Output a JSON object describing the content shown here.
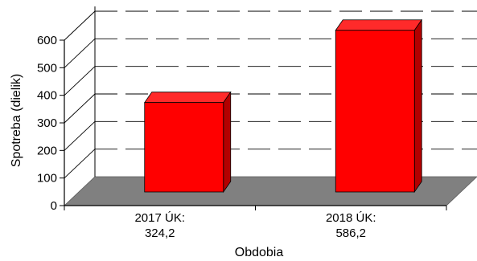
{
  "chart_data": {
    "type": "bar",
    "title": "",
    "xlabel": "Obdobia",
    "ylabel": "Spotreba (dielik)",
    "ylim": [
      0,
      600
    ],
    "yticks": [
      0,
      100,
      200,
      300,
      400,
      500,
      600
    ],
    "grid": true,
    "legend": "none",
    "three_d": true,
    "categories": [
      "2017 ÚK:",
      "2018 ÚK:"
    ],
    "category_values_text": [
      "324,2",
      "586,2"
    ],
    "values": [
      324.2,
      586.2
    ],
    "colors": {
      "bar_front": "#ff0000",
      "bar_side": "#b30000",
      "bar_top": "#ff2a2a",
      "floor": "#808080",
      "gridline": "#000000",
      "axis": "#000000"
    }
  }
}
